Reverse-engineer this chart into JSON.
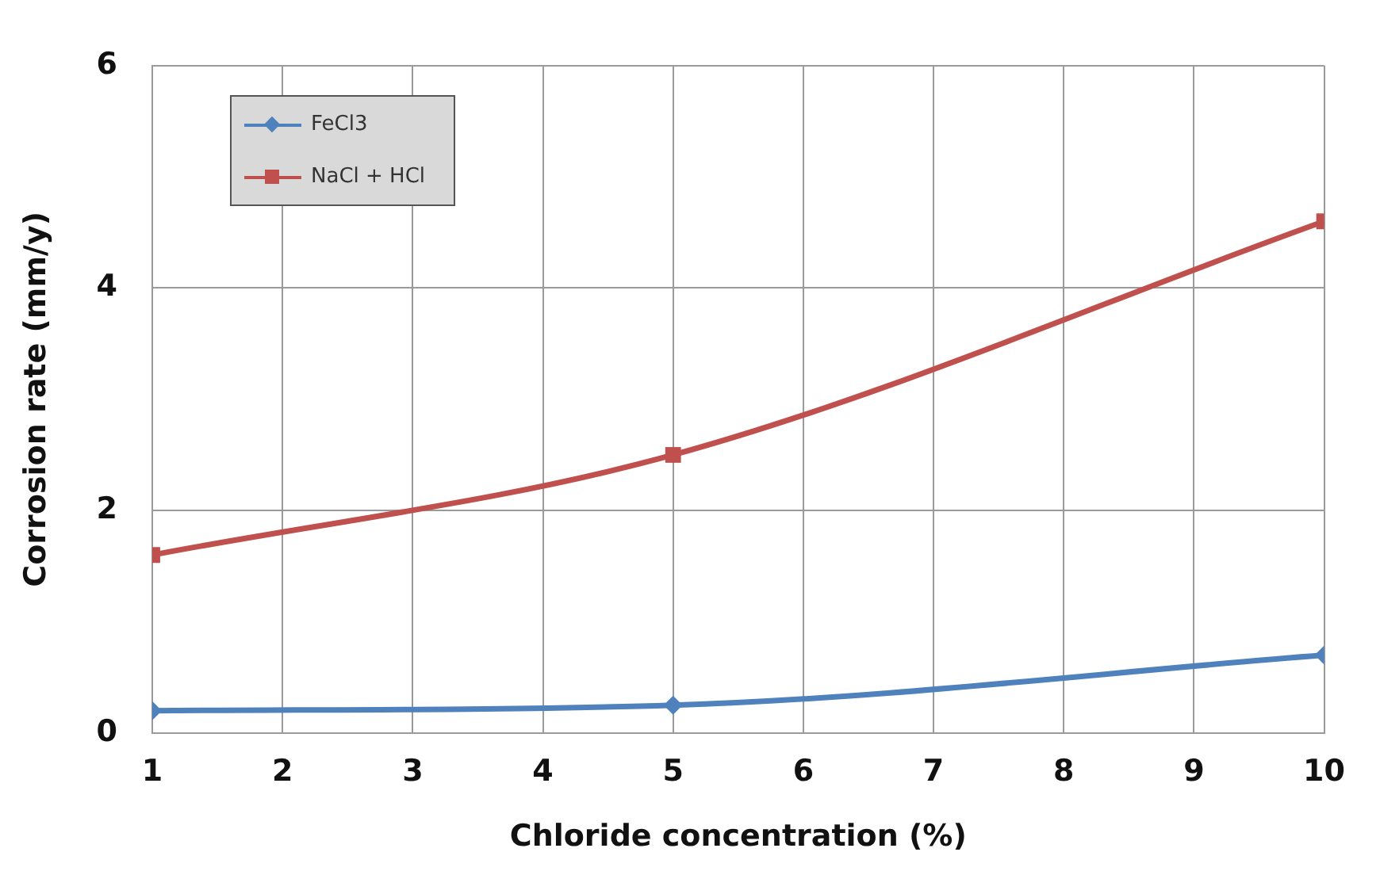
{
  "chart_data": {
    "type": "line",
    "xlabel": "Chloride concentration (%)",
    "ylabel": "Corrosion rate (mm/y)",
    "xlim": [
      1,
      10
    ],
    "xticks": [
      1,
      2,
      3,
      4,
      5,
      6,
      7,
      8,
      9,
      10
    ],
    "ylim": [
      0,
      6
    ],
    "yticks": [
      0,
      2,
      4,
      6
    ],
    "grid": true,
    "legend": "top left",
    "series": [
      {
        "name": "FeCl3",
        "color": "#4f81bd",
        "marker": "diamond",
        "x": [
          1,
          5,
          10
        ],
        "values": [
          0.2,
          0.25,
          0.7
        ]
      },
      {
        "name": "NaCl + HCl",
        "color": "#c0504d",
        "marker": "square",
        "x": [
          1,
          5,
          10
        ],
        "values": [
          1.6,
          2.5,
          4.6
        ]
      }
    ]
  }
}
